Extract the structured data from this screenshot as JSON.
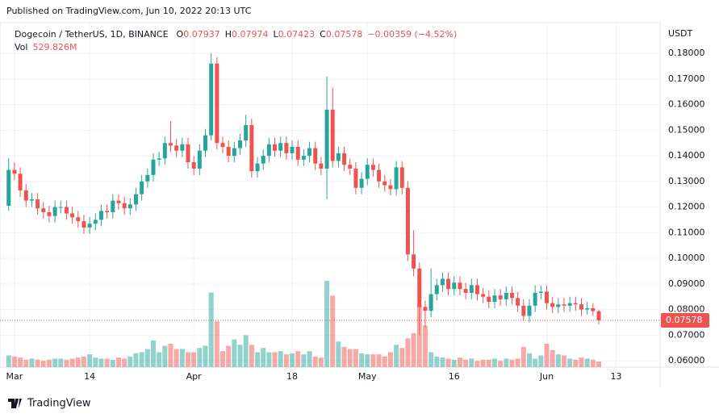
{
  "header": {
    "published": "Published on TradingView.com, Jun 10, 2022 20:13 UTC",
    "footer": "TradingView"
  },
  "chart_data": {
    "type": "candlestick",
    "title": "Dogecoin / TetherUS, 1D, BINANCE",
    "ohlc_prefixes": [
      "O",
      "H",
      "L",
      "C"
    ],
    "change_label": "−0.00359 (−4.52%)",
    "volume_name": "Vol",
    "volume_last_label": "529.826M",
    "y_axis_label": "USDT",
    "up_color": "#26a69a",
    "down_color": "#ef5350",
    "grid": true,
    "xlim": [
      -2.5,
      111.6
    ],
    "ylim": [
      0.0575,
      0.192
    ],
    "volume_lim": [
      0,
      8700
    ],
    "xticks": [
      {
        "value": 0,
        "label": "Mar"
      },
      {
        "value": 13,
        "label": "14"
      },
      {
        "value": 31,
        "label": "Apr"
      },
      {
        "value": 48,
        "label": "18"
      },
      {
        "value": 61,
        "label": "May"
      },
      {
        "value": 76,
        "label": "16"
      },
      {
        "value": 92,
        "label": "Jun"
      },
      {
        "value": 104,
        "label": "13"
      }
    ],
    "yticks": [
      {
        "value": 0.06,
        "label": "0.06000"
      },
      {
        "value": 0.07,
        "label": "0.07000"
      },
      {
        "value": 0.08,
        "label": "0.08000"
      },
      {
        "value": 0.09,
        "label": "0.09000"
      },
      {
        "value": 0.1,
        "label": "0.10000"
      },
      {
        "value": 0.11,
        "label": "0.11000"
      },
      {
        "value": 0.12,
        "label": "0.12000"
      },
      {
        "value": 0.13,
        "label": "0.13000"
      },
      {
        "value": 0.14,
        "label": "0.14000"
      },
      {
        "value": 0.15,
        "label": "0.15000"
      },
      {
        "value": 0.16,
        "label": "0.16000"
      },
      {
        "value": 0.17,
        "label": "0.17000"
      },
      {
        "value": 0.18,
        "label": "0.18000"
      }
    ],
    "x": [
      -1,
      0,
      1,
      2,
      3,
      4,
      5,
      6,
      7,
      8,
      9,
      10,
      11,
      12,
      13,
      14,
      15,
      16,
      17,
      18,
      19,
      20,
      21,
      22,
      23,
      24,
      25,
      26,
      27,
      28,
      29,
      30,
      31,
      32,
      33,
      34,
      35,
      36,
      37,
      38,
      39,
      40,
      41,
      42,
      43,
      44,
      45,
      46,
      47,
      48,
      49,
      50,
      51,
      52,
      53,
      54,
      55,
      56,
      57,
      58,
      59,
      60,
      61,
      62,
      63,
      64,
      65,
      66,
      67,
      68,
      69,
      70,
      71,
      72,
      73,
      74,
      75,
      76,
      77,
      78,
      79,
      80,
      81,
      82,
      83,
      84,
      85,
      86,
      87,
      88,
      89,
      90,
      91,
      92,
      93,
      94,
      95,
      96,
      97,
      98,
      99,
      100,
      101
    ],
    "open": [
      0.1205,
      0.1345,
      0.133,
      0.1265,
      0.1225,
      0.123,
      0.1195,
      0.118,
      0.1165,
      0.12,
      0.12,
      0.1175,
      0.116,
      0.1145,
      0.112,
      0.1135,
      0.115,
      0.1185,
      0.118,
      0.1225,
      0.1215,
      0.1195,
      0.121,
      0.125,
      0.13,
      0.1325,
      0.1385,
      0.139,
      0.145,
      0.144,
      0.142,
      0.1445,
      0.1375,
      0.135,
      0.142,
      0.148,
      0.176,
      0.145,
      0.1435,
      0.14,
      0.143,
      0.146,
      0.152,
      0.134,
      0.137,
      0.14,
      0.1445,
      0.142,
      0.145,
      0.141,
      0.1435,
      0.1385,
      0.14,
      0.143,
      0.137,
      0.135,
      0.158,
      0.138,
      0.141,
      0.1365,
      0.135,
      0.1275,
      0.131,
      0.1365,
      0.1345,
      0.13,
      0.1285,
      0.127,
      0.1355,
      0.1275,
      0.1015,
      0.096,
      0.081,
      0.0795,
      0.086,
      0.0895,
      0.092,
      0.088,
      0.0905,
      0.088,
      0.0865,
      0.0895,
      0.086,
      0.085,
      0.083,
      0.0855,
      0.084,
      0.0865,
      0.0845,
      0.0815,
      0.0775,
      0.0815,
      0.0865,
      0.087,
      0.0825,
      0.081,
      0.082,
      0.0815,
      0.0825,
      0.082,
      0.08,
      0.0805,
      0.07937
    ],
    "high": [
      0.139,
      0.1375,
      0.1355,
      0.129,
      0.1255,
      0.1255,
      0.122,
      0.1205,
      0.1225,
      0.1225,
      0.1225,
      0.12,
      0.1185,
      0.117,
      0.116,
      0.1175,
      0.121,
      0.121,
      0.125,
      0.125,
      0.124,
      0.1235,
      0.1275,
      0.1325,
      0.135,
      0.141,
      0.1415,
      0.1475,
      0.1535,
      0.1465,
      0.147,
      0.147,
      0.14,
      0.1445,
      0.1505,
      0.18,
      0.1785,
      0.1475,
      0.146,
      0.1455,
      0.1485,
      0.156,
      0.1545,
      0.1395,
      0.1425,
      0.147,
      0.147,
      0.1475,
      0.1475,
      0.146,
      0.146,
      0.1425,
      0.1455,
      0.1455,
      0.1395,
      0.171,
      0.1665,
      0.1435,
      0.1435,
      0.139,
      0.1375,
      0.1335,
      0.139,
      0.139,
      0.137,
      0.1325,
      0.131,
      0.138,
      0.138,
      0.13,
      0.111,
      0.0985,
      0.0835,
      0.096,
      0.092,
      0.0945,
      0.0945,
      0.093,
      0.093,
      0.0905,
      0.092,
      0.092,
      0.0885,
      0.0875,
      0.088,
      0.088,
      0.089,
      0.089,
      0.087,
      0.084,
      0.084,
      0.0895,
      0.0895,
      0.0895,
      0.085,
      0.0845,
      0.0845,
      0.085,
      0.085,
      0.0845,
      0.083,
      0.0825,
      0.07974
    ],
    "low": [
      0.1185,
      0.1305,
      0.124,
      0.12,
      0.12,
      0.117,
      0.1155,
      0.114,
      0.114,
      0.1175,
      0.115,
      0.1135,
      0.112,
      0.1095,
      0.1095,
      0.111,
      0.1125,
      0.1155,
      0.1155,
      0.119,
      0.117,
      0.117,
      0.1185,
      0.1225,
      0.1275,
      0.13,
      0.136,
      0.1365,
      0.1415,
      0.1395,
      0.1395,
      0.135,
      0.1325,
      0.1325,
      0.1395,
      0.146,
      0.1425,
      0.141,
      0.1375,
      0.1375,
      0.1405,
      0.1435,
      0.1315,
      0.1315,
      0.1345,
      0.1375,
      0.1395,
      0.1395,
      0.1385,
      0.1385,
      0.136,
      0.136,
      0.1375,
      0.1345,
      0.1325,
      0.123,
      0.1355,
      0.1355,
      0.134,
      0.1325,
      0.125,
      0.125,
      0.1285,
      0.132,
      0.1275,
      0.126,
      0.1245,
      0.1245,
      0.125,
      0.099,
      0.093,
      0.07,
      0.073,
      0.077,
      0.0835,
      0.087,
      0.0855,
      0.0855,
      0.0855,
      0.084,
      0.084,
      0.0835,
      0.0825,
      0.0805,
      0.0805,
      0.0815,
      0.0815,
      0.082,
      0.079,
      0.0755,
      0.075,
      0.079,
      0.084,
      0.08,
      0.0785,
      0.0785,
      0.079,
      0.079,
      0.0795,
      0.0775,
      0.078,
      0.0775,
      0.07423
    ],
    "close": [
      0.1345,
      0.133,
      0.1265,
      0.1225,
      0.123,
      0.1195,
      0.118,
      0.1165,
      0.12,
      0.12,
      0.1175,
      0.116,
      0.1145,
      0.112,
      0.1135,
      0.115,
      0.1185,
      0.118,
      0.1225,
      0.1215,
      0.1195,
      0.121,
      0.125,
      0.13,
      0.1325,
      0.1385,
      0.139,
      0.145,
      0.144,
      0.142,
      0.1445,
      0.1375,
      0.135,
      0.142,
      0.148,
      0.176,
      0.145,
      0.1435,
      0.14,
      0.143,
      0.146,
      0.152,
      0.134,
      0.137,
      0.14,
      0.1445,
      0.142,
      0.145,
      0.141,
      0.1435,
      0.1385,
      0.14,
      0.143,
      0.137,
      0.135,
      0.158,
      0.138,
      0.141,
      0.1365,
      0.135,
      0.1275,
      0.131,
      0.1365,
      0.1345,
      0.13,
      0.1285,
      0.127,
      0.1355,
      0.1275,
      0.1015,
      0.096,
      0.081,
      0.0795,
      0.086,
      0.0895,
      0.092,
      0.088,
      0.0905,
      0.088,
      0.0865,
      0.0895,
      0.086,
      0.085,
      0.083,
      0.0855,
      0.084,
      0.0865,
      0.0845,
      0.0815,
      0.0775,
      0.0815,
      0.0865,
      0.087,
      0.0825,
      0.081,
      0.082,
      0.0815,
      0.0825,
      0.082,
      0.08,
      0.0805,
      0.07937,
      0.07578
    ],
    "volume": [
      1100,
      1000,
      900,
      700,
      800,
      700,
      600,
      700,
      800,
      800,
      700,
      800,
      900,
      1000,
      1200,
      900,
      800,
      800,
      700,
      900,
      800,
      1000,
      1300,
      1400,
      1700,
      2500,
      1400,
      2000,
      2200,
      1700,
      1700,
      1400,
      1400,
      1800,
      2000,
      7000,
      4300,
      1500,
      2000,
      2600,
      2100,
      3000,
      2100,
      1400,
      1800,
      1400,
      1400,
      1500,
      1200,
      1300,
      1500,
      1200,
      1500,
      1000,
      900,
      8100,
      6700,
      2400,
      1900,
      1700,
      1700,
      1300,
      1200,
      1200,
      1200,
      1000,
      1400,
      2100,
      1800,
      2700,
      3200,
      5800,
      3900,
      1400,
      1000,
      900,
      800,
      700,
      900,
      700,
      800,
      600,
      700,
      700,
      800,
      600,
      800,
      700,
      800,
      1900,
      1300,
      800,
      1100,
      2200,
      1600,
      1200,
      1100,
      800,
      700,
      900,
      800,
      700,
      529.826
    ]
  }
}
